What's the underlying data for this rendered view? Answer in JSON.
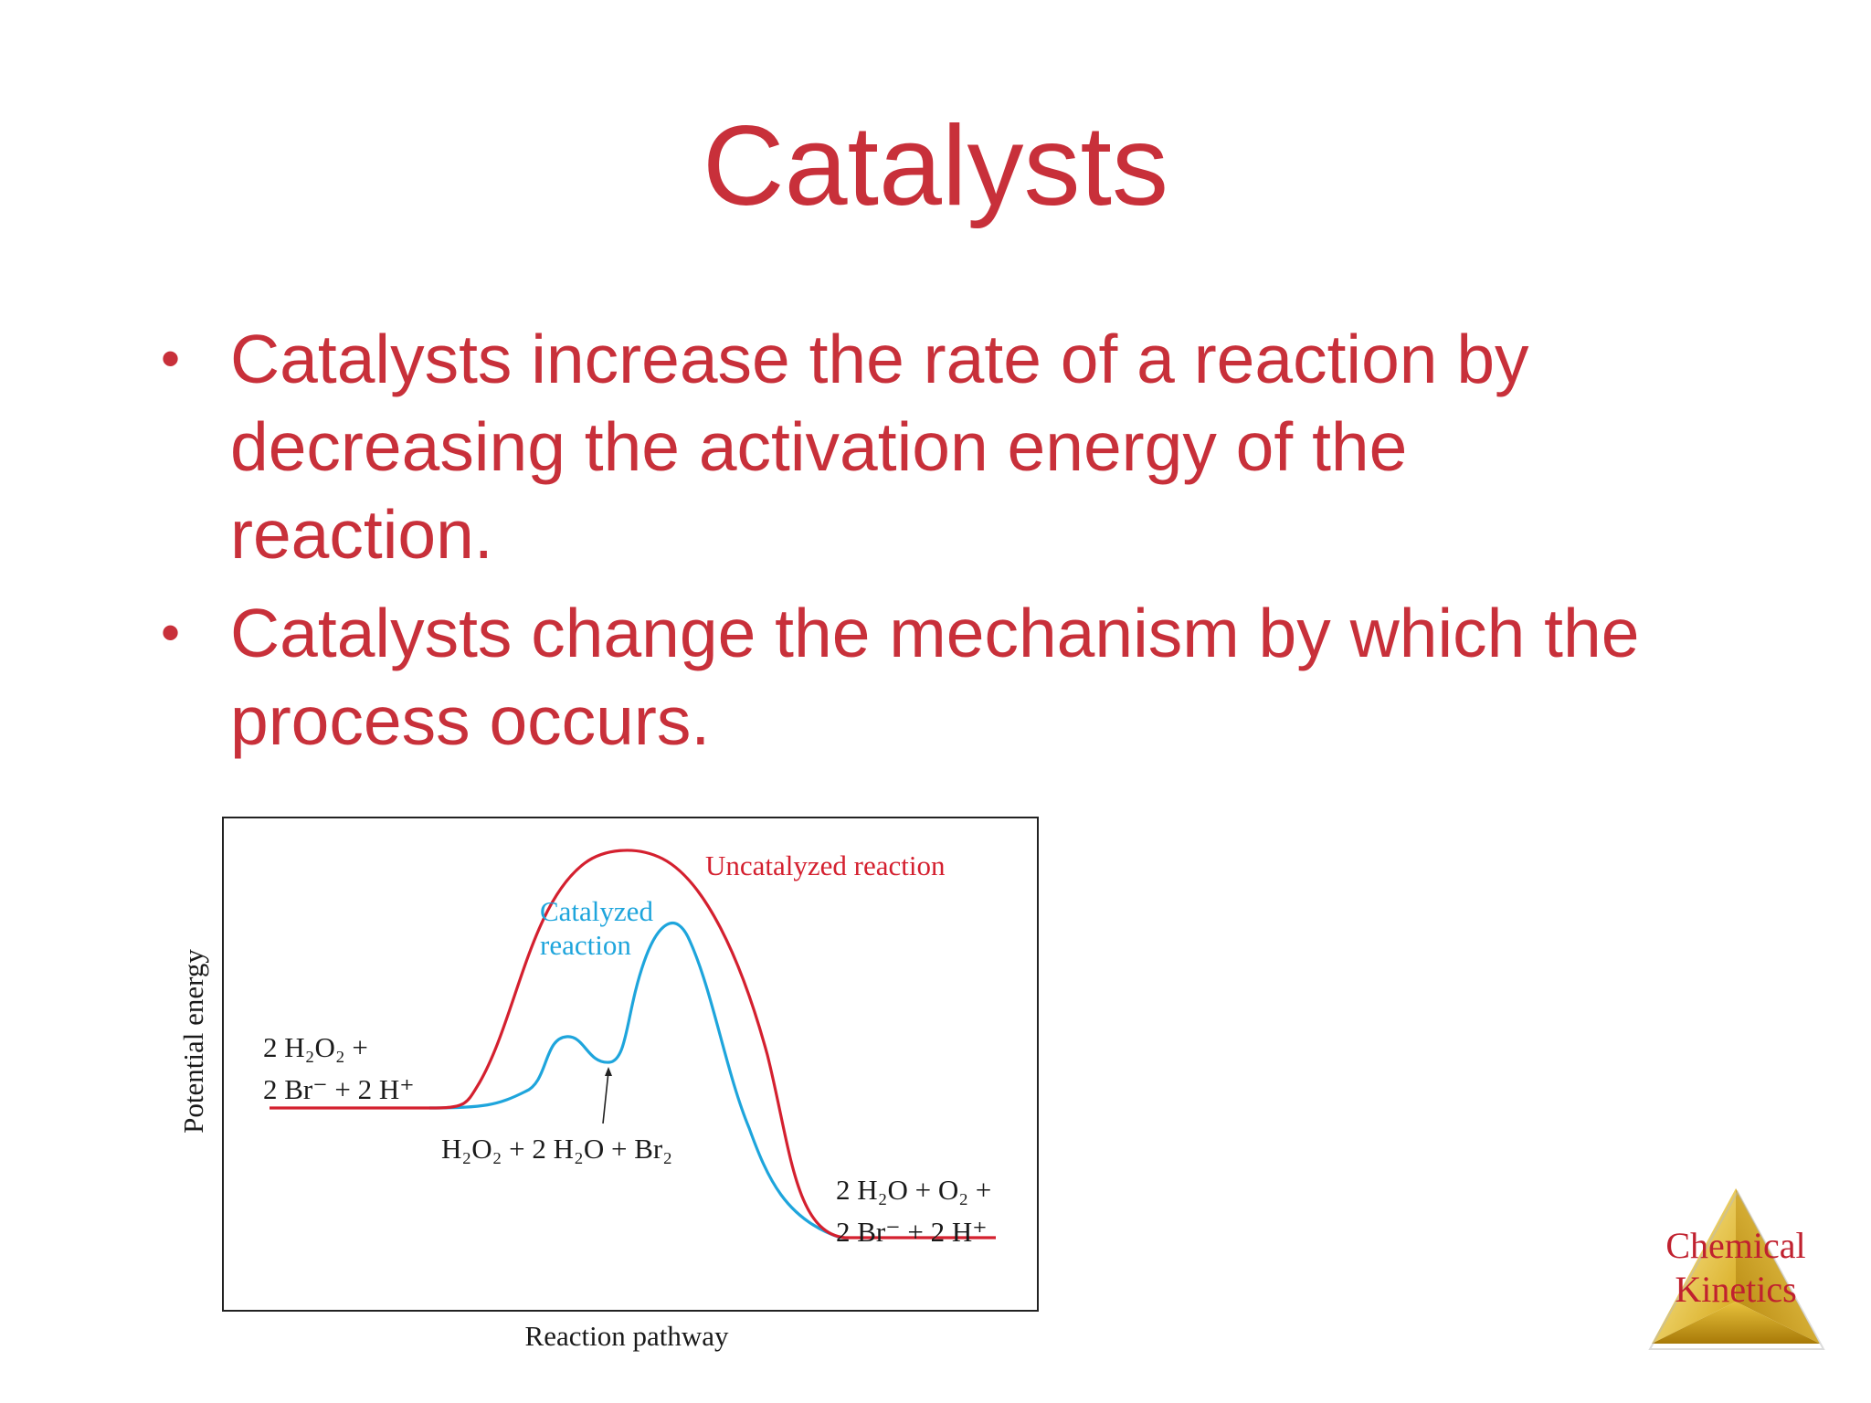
{
  "slide": {
    "title": "Catalysts",
    "bullets": [
      "Catalysts increase the rate of a reaction by decreasing the activation energy of the reaction.",
      "Catalysts change the mechanism by which the process occurs."
    ]
  },
  "diagram": {
    "y_axis_label": "Potential energy",
    "x_axis_label": "Reaction pathway",
    "uncatalyzed_label": "Uncatalyzed reaction",
    "catalyzed_label_line1": "Catalyzed",
    "catalyzed_label_line2": "reaction",
    "reactants_line1": "2 H₂O₂ +",
    "reactants_line2": "2 Br⁻ + 2 H⁺",
    "intermediate": "H₂O₂ + 2 H₂O + Br₂",
    "products_line1": "2 H₂O + O₂ +",
    "products_line2": "2 Br⁻ + 2 H⁺",
    "colors": {
      "uncatalyzed": "#d4202f",
      "catalyzed": "#1ea5dc",
      "text": "#1a1a1a"
    }
  },
  "badge": {
    "line1": "Chemical",
    "line2": "Kinetics"
  },
  "colors": {
    "accent": "#c8303a"
  }
}
